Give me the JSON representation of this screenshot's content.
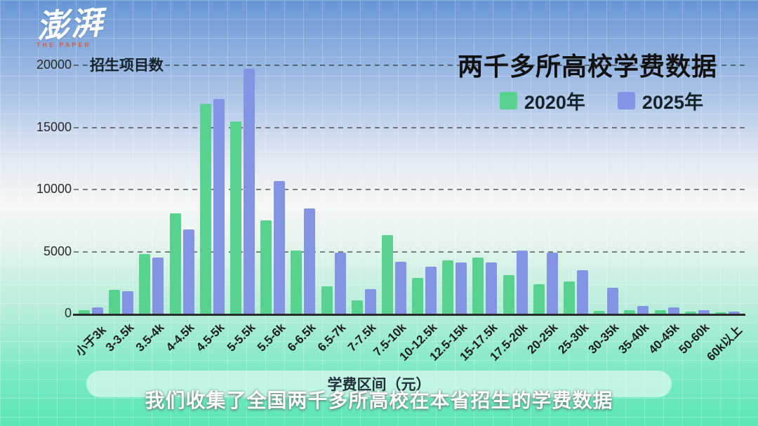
{
  "logo": {
    "main": "澎湃",
    "sub": "THE PAPER"
  },
  "caption": "我们收集了全国两千多所高校在本省招生的学费数据",
  "chart_data": {
    "type": "bar",
    "title": "两千多所高校学费数据",
    "ylabel": "招生项目数",
    "xlabel": "学费区间（元）",
    "ylim": [
      0,
      20000
    ],
    "y_ticks": [
      0,
      5000,
      10000,
      15000,
      20000
    ],
    "grid": "dashed horizontal",
    "legend_position": "top-right",
    "categories": [
      "小于3k",
      "3-3.5k",
      "3.5-4k",
      "4-4.5k",
      "4.5-5k",
      "5-5.5k",
      "5.5-6k",
      "6-6.5k",
      "6.5-7k",
      "7-7.5k",
      "7.5-10k",
      "10-12.5k",
      "12.5-15k",
      "15-17.5k",
      "17.5-20k",
      "20-25k",
      "25-30k",
      "30-35k",
      "35-40k",
      "40-45k",
      "50-60k",
      "60k以上"
    ],
    "series": [
      {
        "name": "2020年",
        "color": "#57d38f",
        "values": [
          300,
          1900,
          4800,
          8100,
          16900,
          15500,
          7500,
          5100,
          2200,
          1100,
          6300,
          2900,
          4300,
          4500,
          3100,
          2400,
          2600,
          250,
          300,
          300,
          150,
          100
        ]
      },
      {
        "name": "2025年",
        "color": "#8494e4",
        "values": [
          500,
          1800,
          4500,
          6800,
          17300,
          19700,
          10700,
          8500,
          4900,
          2000,
          4200,
          3800,
          4100,
          4100,
          5100,
          4900,
          3500,
          2100,
          600,
          500,
          300,
          150
        ]
      }
    ]
  }
}
